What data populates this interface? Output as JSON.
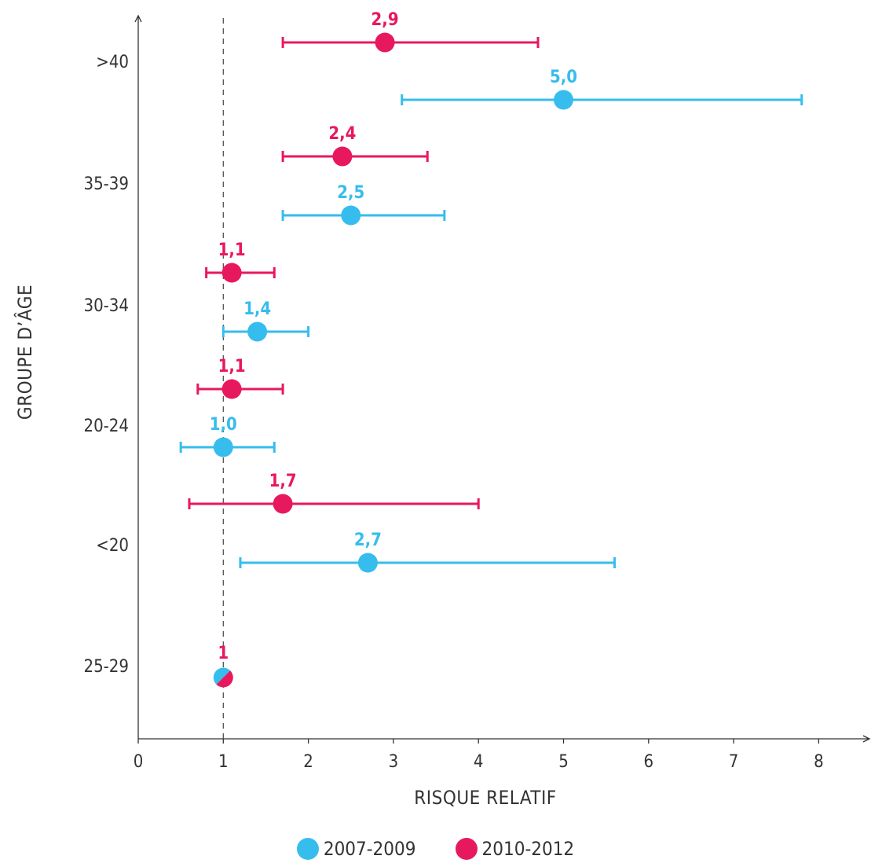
{
  "chart_data": {
    "type": "scatter",
    "subtype": "forest-plot",
    "xlabel": "RISQUE RELATIF",
    "ylabel": "GROUPE D’ÂGE",
    "xlim": [
      0,
      8
    ],
    "x_ticks": [
      "0",
      "1",
      "2",
      "3",
      "4",
      "5",
      "6",
      "7",
      "8"
    ],
    "reference_line": 1,
    "grid": false,
    "categories": [
      ">40",
      "35-39",
      "30-34",
      "20-24",
      "<20",
      "25-29"
    ],
    "series": [
      {
        "name": "2007-2009",
        "color": "#36bdee",
        "points": [
          {
            "category": ">40",
            "value": 5.0,
            "ci_low": 3.1,
            "ci_high": 7.8,
            "label": "5,0"
          },
          {
            "category": "35-39",
            "value": 2.5,
            "ci_low": 1.7,
            "ci_high": 3.6,
            "label": "2,5"
          },
          {
            "category": "30-34",
            "value": 1.4,
            "ci_low": 1.0,
            "ci_high": 2.0,
            "label": "1,4"
          },
          {
            "category": "20-24",
            "value": 1.0,
            "ci_low": 0.5,
            "ci_high": 1.6,
            "label": "1,0"
          },
          {
            "category": "<20",
            "value": 2.7,
            "ci_low": 1.2,
            "ci_high": 5.6,
            "label": "2,7"
          }
        ]
      },
      {
        "name": "2010-2012",
        "color": "#e8185f",
        "points": [
          {
            "category": ">40",
            "value": 2.9,
            "ci_low": 1.7,
            "ci_high": 4.7,
            "label": "2,9"
          },
          {
            "category": "35-39",
            "value": 2.4,
            "ci_low": 1.7,
            "ci_high": 3.4,
            "label": "2,4"
          },
          {
            "category": "30-34",
            "value": 1.1,
            "ci_low": 0.8,
            "ci_high": 1.6,
            "label": "1,1"
          },
          {
            "category": "20-24",
            "value": 1.1,
            "ci_low": 0.7,
            "ci_high": 1.7,
            "label": "1,1"
          },
          {
            "category": "<20",
            "value": 1.7,
            "ci_low": 0.6,
            "ci_high": 4.0,
            "label": "1,7"
          }
        ]
      }
    ],
    "reference_point": {
      "category": "25-29",
      "value": 1,
      "label": "1"
    }
  }
}
